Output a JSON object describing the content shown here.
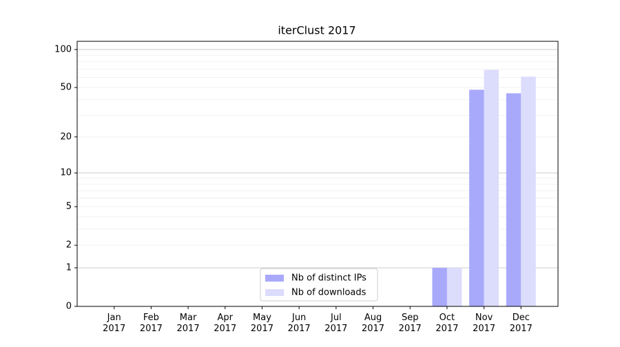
{
  "chart_data": {
    "type": "bar",
    "title": "iterClust 2017",
    "categories": [
      "Jan\n2017",
      "Feb\n2017",
      "Mar\n2017",
      "Apr\n2017",
      "May\n2017",
      "Jun\n2017",
      "Jul\n2017",
      "Aug\n2017",
      "Sep\n2017",
      "Oct\n2017",
      "Nov\n2017",
      "Dec\n2017"
    ],
    "series": [
      {
        "name": "Nb of distinct IPs",
        "color": "#a9a9fc",
        "values": [
          0,
          0,
          0,
          0,
          0,
          0,
          0,
          0,
          0,
          1,
          48,
          45
        ]
      },
      {
        "name": "Nb of downloads",
        "color": "#dcdcfd",
        "values": [
          0,
          0,
          0,
          0,
          0,
          0,
          0,
          0,
          0,
          1,
          69,
          61
        ]
      }
    ],
    "yscale": "log1p",
    "ylim": [
      0,
      116
    ],
    "yticks": [
      0,
      1,
      2,
      5,
      10,
      20,
      50,
      100
    ],
    "grid": true,
    "legend": "lower center"
  }
}
